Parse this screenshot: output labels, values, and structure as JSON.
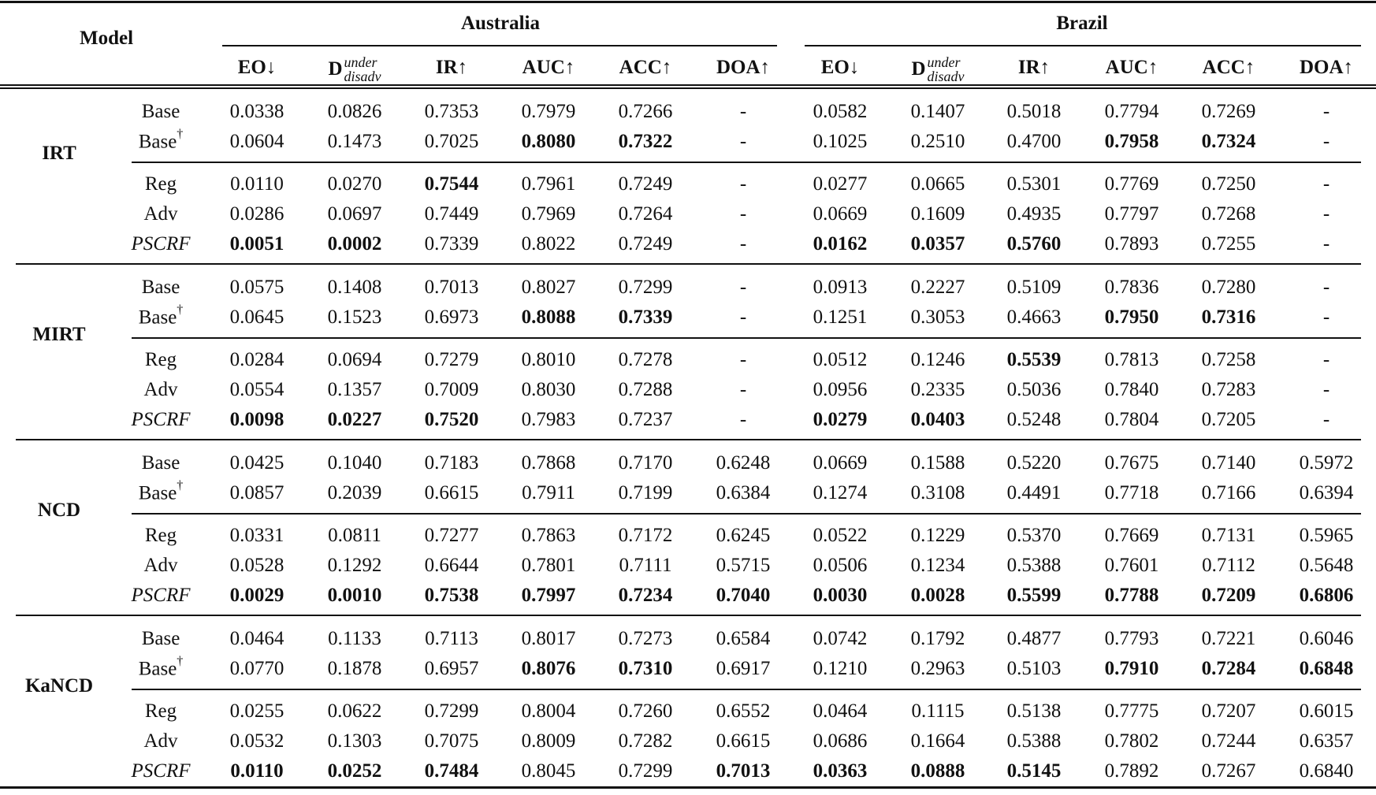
{
  "header": {
    "model_label": "Model",
    "countries": [
      "Australia",
      "Brazil"
    ],
    "metrics": [
      {
        "text": "EO↓"
      },
      {
        "main": "D",
        "sup": "under",
        "sub": "disadv"
      },
      {
        "text": "IR↑"
      },
      {
        "text": "AUC↑"
      },
      {
        "text": "ACC↑"
      },
      {
        "text": "DOA↑"
      }
    ]
  },
  "groups": [
    {
      "model": "IRT",
      "rows": [
        {
          "variant": "Base",
          "dagger": "",
          "values": [
            "0.0338",
            "0.0826",
            "0.7353",
            "0.7979",
            "0.7266",
            "-",
            "0.0582",
            "0.1407",
            "0.5018",
            "0.7794",
            "0.7269",
            "-"
          ],
          "bold": []
        },
        {
          "variant": "Base",
          "dagger": "†",
          "values": [
            "0.0604",
            "0.1473",
            "0.7025",
            "0.8080",
            "0.7322",
            "-",
            "0.1025",
            "0.2510",
            "0.4700",
            "0.7958",
            "0.7324",
            "-"
          ],
          "bold": [
            3,
            4,
            9,
            10
          ]
        },
        {
          "variant": "Reg",
          "dagger": "",
          "values": [
            "0.0110",
            "0.0270",
            "0.7544",
            "0.7961",
            "0.7249",
            "-",
            "0.0277",
            "0.0665",
            "0.5301",
            "0.7769",
            "0.7250",
            "-"
          ],
          "bold": [
            2
          ]
        },
        {
          "variant": "Adv",
          "dagger": "",
          "values": [
            "0.0286",
            "0.0697",
            "0.7449",
            "0.7969",
            "0.7264",
            "-",
            "0.0669",
            "0.1609",
            "0.4935",
            "0.7797",
            "0.7268",
            "-"
          ],
          "bold": []
        },
        {
          "variant": "PSCRF",
          "dagger": "",
          "italic": true,
          "values": [
            "0.0051",
            "0.0002",
            "0.7339",
            "0.8022",
            "0.7249",
            "-",
            "0.0162",
            "0.0357",
            "0.5760",
            "0.7893",
            "0.7255",
            "-"
          ],
          "bold": [
            0,
            1,
            6,
            7,
            8
          ]
        }
      ]
    },
    {
      "model": "MIRT",
      "rows": [
        {
          "variant": "Base",
          "dagger": "",
          "values": [
            "0.0575",
            "0.1408",
            "0.7013",
            "0.8027",
            "0.7299",
            "-",
            "0.0913",
            "0.2227",
            "0.5109",
            "0.7836",
            "0.7280",
            "-"
          ],
          "bold": []
        },
        {
          "variant": "Base",
          "dagger": "†",
          "values": [
            "0.0645",
            "0.1523",
            "0.6973",
            "0.8088",
            "0.7339",
            "-",
            "0.1251",
            "0.3053",
            "0.4663",
            "0.7950",
            "0.7316",
            "-"
          ],
          "bold": [
            3,
            4,
            9,
            10
          ]
        },
        {
          "variant": "Reg",
          "dagger": "",
          "values": [
            "0.0284",
            "0.0694",
            "0.7279",
            "0.8010",
            "0.7278",
            "-",
            "0.0512",
            "0.1246",
            "0.5539",
            "0.7813",
            "0.7258",
            "-"
          ],
          "bold": [
            8
          ]
        },
        {
          "variant": "Adv",
          "dagger": "",
          "values": [
            "0.0554",
            "0.1357",
            "0.7009",
            "0.8030",
            "0.7288",
            "-",
            "0.0956",
            "0.2335",
            "0.5036",
            "0.7840",
            "0.7283",
            "-"
          ],
          "bold": []
        },
        {
          "variant": "PSCRF",
          "dagger": "",
          "italic": true,
          "values": [
            "0.0098",
            "0.0227",
            "0.7520",
            "0.7983",
            "0.7237",
            "-",
            "0.0279",
            "0.0403",
            "0.5248",
            "0.7804",
            "0.7205",
            "-"
          ],
          "bold": [
            0,
            1,
            2,
            6,
            7
          ]
        }
      ]
    },
    {
      "model": "NCD",
      "rows": [
        {
          "variant": "Base",
          "dagger": "",
          "values": [
            "0.0425",
            "0.1040",
            "0.7183",
            "0.7868",
            "0.7170",
            "0.6248",
            "0.0669",
            "0.1588",
            "0.5220",
            "0.7675",
            "0.7140",
            "0.5972"
          ],
          "bold": []
        },
        {
          "variant": "Base",
          "dagger": "†",
          "values": [
            "0.0857",
            "0.2039",
            "0.6615",
            "0.7911",
            "0.7199",
            "0.6384",
            "0.1274",
            "0.3108",
            "0.4491",
            "0.7718",
            "0.7166",
            "0.6394"
          ],
          "bold": []
        },
        {
          "variant": "Reg",
          "dagger": "",
          "values": [
            "0.0331",
            "0.0811",
            "0.7277",
            "0.7863",
            "0.7172",
            "0.6245",
            "0.0522",
            "0.1229",
            "0.5370",
            "0.7669",
            "0.7131",
            "0.5965"
          ],
          "bold": []
        },
        {
          "variant": "Adv",
          "dagger": "",
          "values": [
            "0.0528",
            "0.1292",
            "0.6644",
            "0.7801",
            "0.7111",
            "0.5715",
            "0.0506",
            "0.1234",
            "0.5388",
            "0.7601",
            "0.7112",
            "0.5648"
          ],
          "bold": []
        },
        {
          "variant": "PSCRF",
          "dagger": "",
          "italic": true,
          "values": [
            "0.0029",
            "0.0010",
            "0.7538",
            "0.7997",
            "0.7234",
            "0.7040",
            "0.0030",
            "0.0028",
            "0.5599",
            "0.7788",
            "0.7209",
            "0.6806"
          ],
          "bold": [
            0,
            1,
            2,
            3,
            4,
            5,
            6,
            7,
            8,
            9,
            10,
            11
          ]
        }
      ]
    },
    {
      "model": "KaNCD",
      "rows": [
        {
          "variant": "Base",
          "dagger": "",
          "values": [
            "0.0464",
            "0.1133",
            "0.7113",
            "0.8017",
            "0.7273",
            "0.6584",
            "0.0742",
            "0.1792",
            "0.4877",
            "0.7793",
            "0.7221",
            "0.6046"
          ],
          "bold": []
        },
        {
          "variant": "Base",
          "dagger": "†",
          "values": [
            "0.0770",
            "0.1878",
            "0.6957",
            "0.8076",
            "0.7310",
            "0.6917",
            "0.1210",
            "0.2963",
            "0.5103",
            "0.7910",
            "0.7284",
            "0.6848"
          ],
          "bold": [
            3,
            4,
            9,
            10,
            11
          ]
        },
        {
          "variant": "Reg",
          "dagger": "",
          "values": [
            "0.0255",
            "0.0622",
            "0.7299",
            "0.8004",
            "0.7260",
            "0.6552",
            "0.0464",
            "0.1115",
            "0.5138",
            "0.7775",
            "0.7207",
            "0.6015"
          ],
          "bold": []
        },
        {
          "variant": "Adv",
          "dagger": "",
          "values": [
            "0.0532",
            "0.1303",
            "0.7075",
            "0.8009",
            "0.7282",
            "0.6615",
            "0.0686",
            "0.1664",
            "0.5388",
            "0.7802",
            "0.7244",
            "0.6357"
          ],
          "bold": []
        },
        {
          "variant": "PSCRF",
          "dagger": "",
          "italic": true,
          "values": [
            "0.0110",
            "0.0252",
            "0.7484",
            "0.8045",
            "0.7299",
            "0.7013",
            "0.0363",
            "0.0888",
            "0.5145",
            "0.7892",
            "0.7267",
            "0.6840"
          ],
          "bold": [
            0,
            1,
            2,
            5,
            6,
            7,
            8
          ]
        }
      ]
    }
  ]
}
